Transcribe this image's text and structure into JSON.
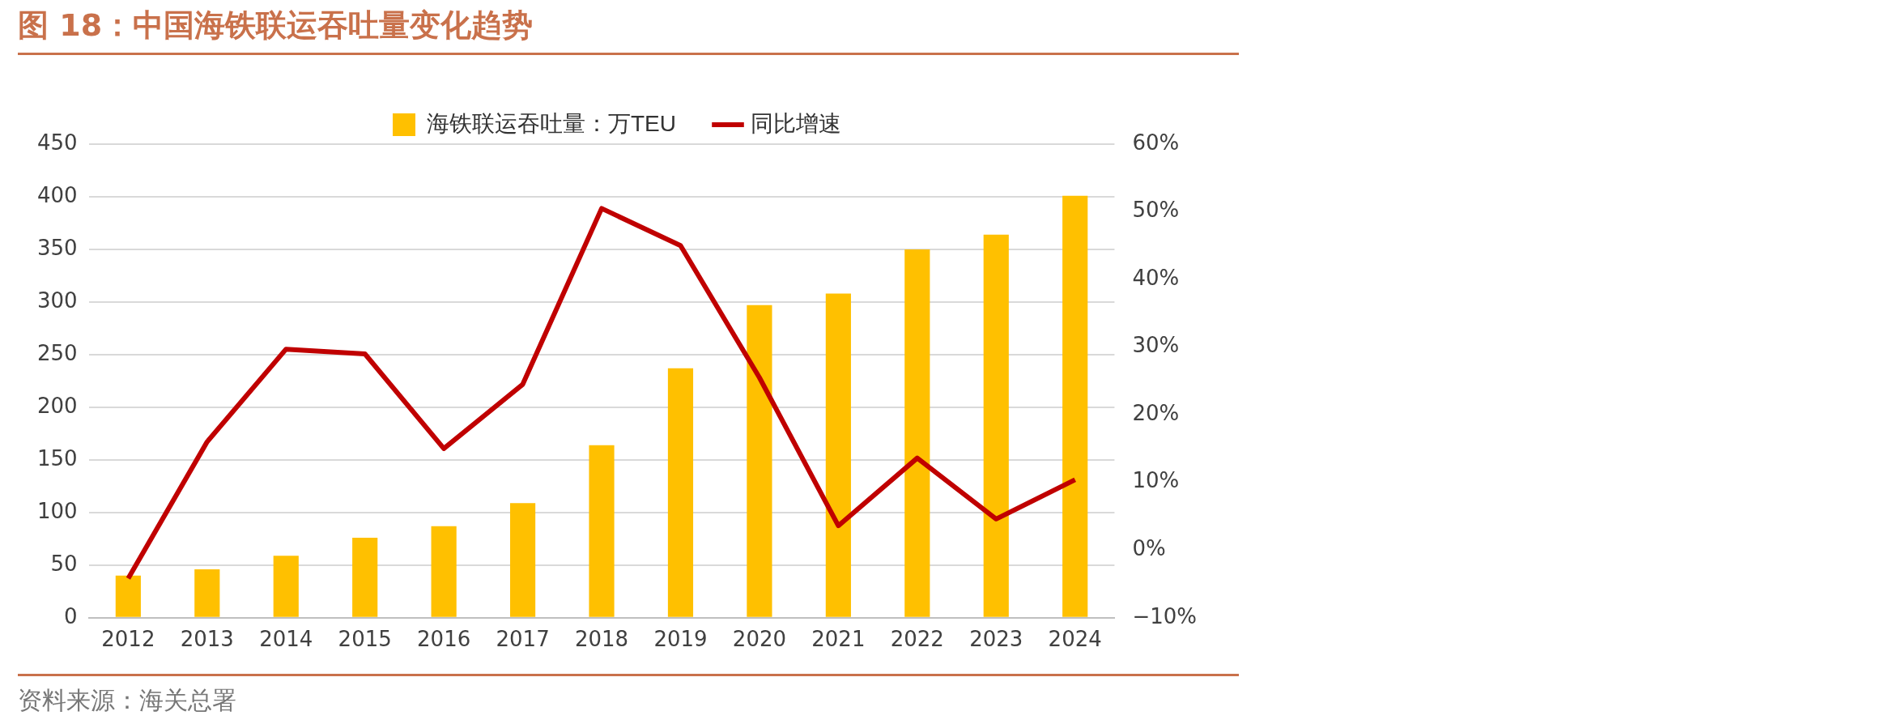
{
  "chart_data": {
    "type": "bar",
    "title": "图 18：中国海铁联运吞吐量变化趋势",
    "categories": [
      "2012",
      "2013",
      "2014",
      "2015",
      "2016",
      "2017",
      "2018",
      "2019",
      "2020",
      "2021",
      "2022",
      "2023",
      "2024"
    ],
    "series": [
      {
        "name": "海铁联运吞吐量：万TEU",
        "color": "#ffc000",
        "values": [
          40,
          46,
          59,
          76,
          87,
          109,
          164,
          237,
          297,
          308,
          350,
          364,
          401
        ]
      },
      {
        "name": "同比增速",
        "type": "line",
        "axis": "y2",
        "color": "#c00000",
        "values": [
          -4.2,
          16,
          29.7,
          29,
          15,
          24.5,
          50.5,
          45,
          25.5,
          3.6,
          13.6,
          4.6,
          10.4
        ]
      }
    ],
    "ylim": [
      0,
      450
    ],
    "yticks": [
      0,
      50,
      100,
      150,
      200,
      250,
      300,
      350,
      400,
      450
    ],
    "y2lim": [
      -10,
      60
    ],
    "y2ticks": [
      {
        "value": -10,
        "label": "−10%"
      },
      {
        "value": 0,
        "label": "0%"
      },
      {
        "value": 10,
        "label": "10%"
      },
      {
        "value": 20,
        "label": "20%"
      },
      {
        "value": 30,
        "label": "30%"
      },
      {
        "value": 40,
        "label": "40%"
      },
      {
        "value": 50,
        "label": "50%"
      },
      {
        "value": 60,
        "label": "60%"
      }
    ],
    "grid": "y",
    "legend": "top",
    "marker": "none",
    "line_style": "solid",
    "annotations": [
      "资料来源：海关总署"
    ]
  }
}
